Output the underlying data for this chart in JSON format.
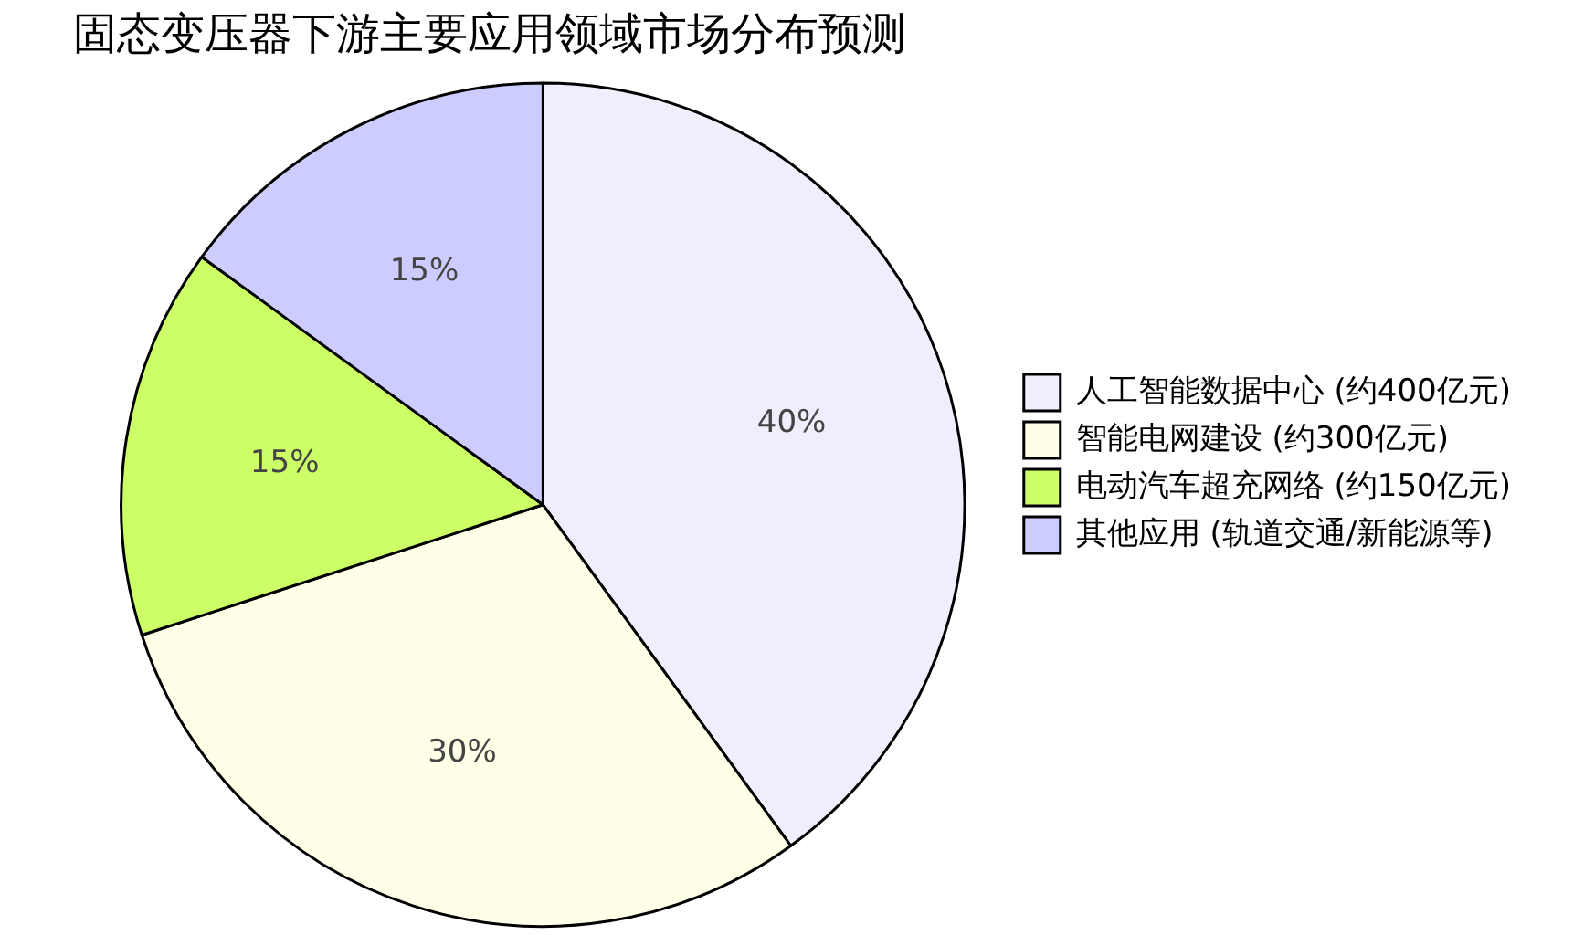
{
  "chart_data": {
    "type": "pie",
    "title": "固态变压器下游主要应用领域市场分布预测",
    "categories": [
      "人工智能数据中心 (约400亿元)",
      "智能电网建设 (约300亿元)",
      "电动汽车超充网络 (约150亿元)",
      "其他应用 (轨道交通/新能源等)"
    ],
    "values": [
      40,
      30,
      15,
      15
    ],
    "colors": [
      "#eeeefc",
      "#ffffe8",
      "#ccff66",
      "#ccccff"
    ],
    "value_labels": [
      "40%",
      "30%",
      "15%",
      "15%"
    ],
    "legend": "right"
  }
}
